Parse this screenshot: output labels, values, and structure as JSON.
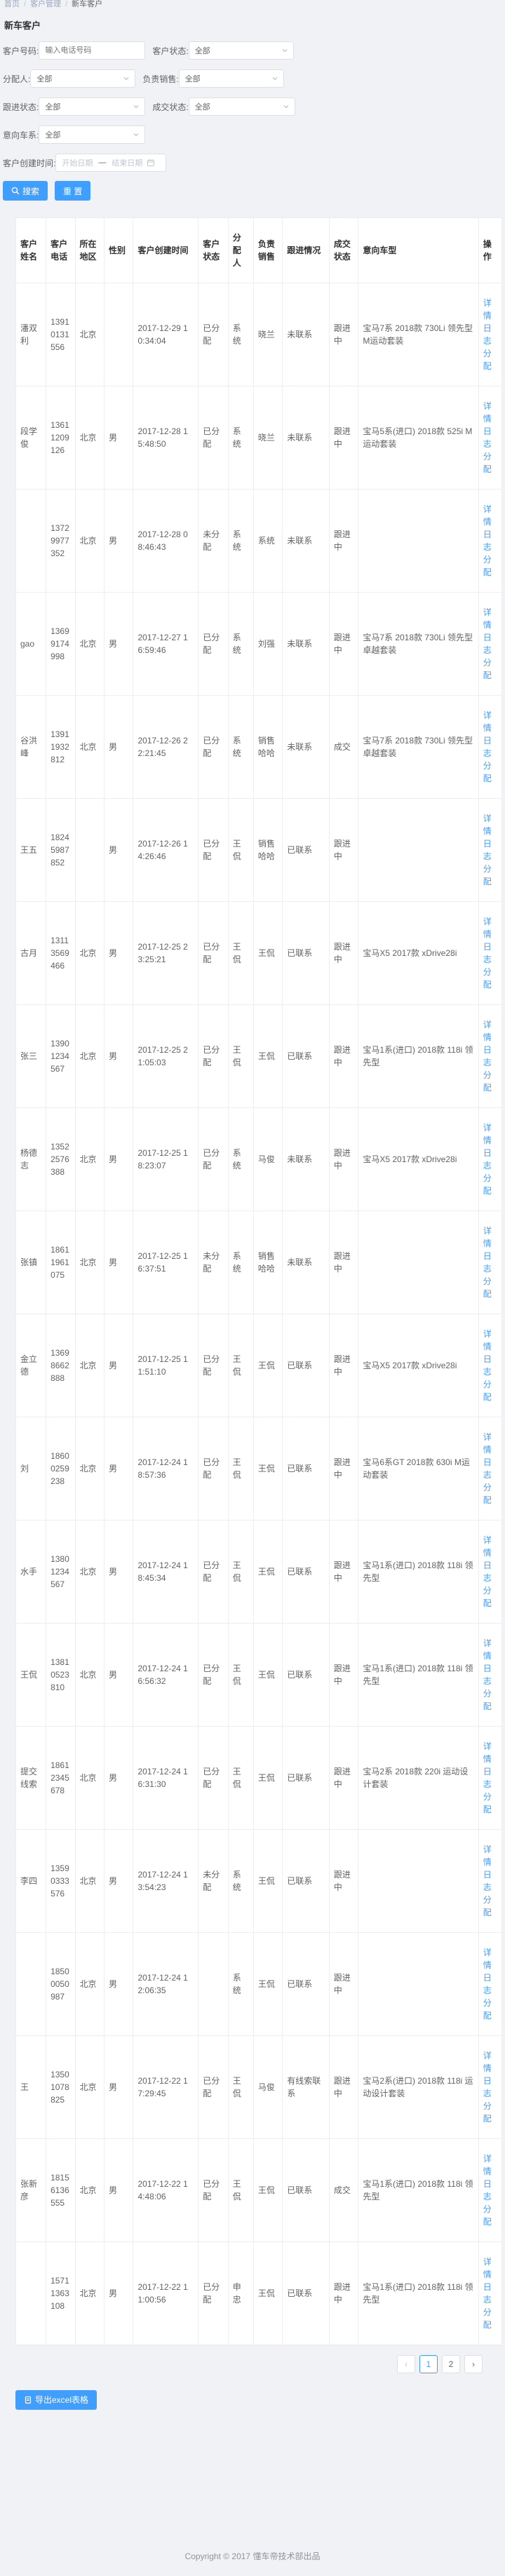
{
  "breadcrumb": [
    "首页",
    "客户管理",
    "新车客户"
  ],
  "page_title": "新车客户",
  "filters": {
    "phone_label": "客户号码:",
    "phone_placeholder": "输入电话号码",
    "status_label": "客户状态:",
    "status_value": "全部",
    "assignee_label": "分配人:",
    "assignee_value": "全部",
    "sales_label": "负责销售:",
    "sales_value": "全部",
    "follow_label": "跟进状态:",
    "follow_value": "全部",
    "deal_label": "成交状态:",
    "deal_value": "全部",
    "model_label": "意向车系:",
    "model_value": "全部",
    "created_label": "客户创建时间:",
    "start_placeholder": "开始日期",
    "range_dash": "—",
    "end_placeholder": "结束日期",
    "search_label": "搜索",
    "reset_label": "重 置"
  },
  "table": {
    "headers": [
      "客户姓名",
      "客户电话",
      "所在地区",
      "性别",
      "客户创建时间",
      "客户状态",
      "分配人",
      "负责销售",
      "跟进情况",
      "成交状态",
      "意向车型",
      "操作"
    ],
    "op_links": [
      "详情",
      "日志",
      "分配"
    ],
    "rows": [
      {
        "name": "潘双利",
        "phone": "13910131556",
        "region": "北京",
        "gender": "",
        "created": "2017-12-29 10:34:04",
        "status": "已分配",
        "assigner": "系统",
        "sales": "晓兰",
        "follow": "未联系",
        "deal": "跟进中",
        "model": "宝马7系 2018款 730Li 领先型 M运动套装"
      },
      {
        "name": "段学俊",
        "phone": "13611209126",
        "region": "北京",
        "gender": "男",
        "created": "2017-12-28 15:48:50",
        "status": "已分配",
        "assigner": "系统",
        "sales": "晓兰",
        "follow": "未联系",
        "deal": "跟进中",
        "model": "宝马5系(进口) 2018款 525i M运动套装"
      },
      {
        "name": "",
        "phone": "13729977352",
        "region": "北京",
        "gender": "男",
        "created": "2017-12-28 08:46:43",
        "status": "未分配",
        "assigner": "系统",
        "sales": "系统",
        "follow": "未联系",
        "deal": "跟进中",
        "model": ""
      },
      {
        "name": "gao",
        "phone": "13699174998",
        "region": "北京",
        "gender": "男",
        "created": "2017-12-27 16:59:46",
        "status": "已分配",
        "assigner": "系统",
        "sales": "刘强",
        "follow": "未联系",
        "deal": "跟进中",
        "model": "宝马7系 2018款 730Li 领先型 卓越套装"
      },
      {
        "name": "谷洪峰",
        "phone": "13911932812",
        "region": "北京",
        "gender": "男",
        "created": "2017-12-26 22:21:45",
        "status": "已分配",
        "assigner": "系统",
        "sales": "销售哈哈",
        "follow": "未联系",
        "deal": "成交",
        "model": "宝马7系 2018款 730Li 领先型 卓越套装"
      },
      {
        "name": "王五",
        "phone": "18245987852",
        "region": "",
        "gender": "男",
        "created": "2017-12-26 14:26:46",
        "status": "已分配",
        "assigner": "王侃",
        "sales": "销售哈哈",
        "follow": "已联系",
        "deal": "跟进中",
        "model": ""
      },
      {
        "name": "古月",
        "phone": "13113569466",
        "region": "北京",
        "gender": "男",
        "created": "2017-12-25 23:25:21",
        "status": "已分配",
        "assigner": "王侃",
        "sales": "王侃",
        "follow": "已联系",
        "deal": "跟进中",
        "model": "宝马X5 2017款 xDrive28i"
      },
      {
        "name": "张三",
        "phone": "13901234567",
        "region": "北京",
        "gender": "男",
        "created": "2017-12-25 21:05:03",
        "status": "已分配",
        "assigner": "王侃",
        "sales": "王侃",
        "follow": "已联系",
        "deal": "跟进中",
        "model": "宝马1系(进口) 2018款 118i 领先型"
      },
      {
        "name": "杨德志",
        "phone": "13522576388",
        "region": "北京",
        "gender": "男",
        "created": "2017-12-25 18:23:07",
        "status": "已分配",
        "assigner": "系统",
        "sales": "马俊",
        "follow": "未联系",
        "deal": "跟进中",
        "model": "宝马X5 2017款 xDrive28i"
      },
      {
        "name": "张镇",
        "phone": "18611961075",
        "region": "北京",
        "gender": "男",
        "created": "2017-12-25 16:37:51",
        "status": "未分配",
        "assigner": "系统",
        "sales": "销售哈哈",
        "follow": "未联系",
        "deal": "跟进中",
        "model": ""
      },
      {
        "name": "金立德",
        "phone": "13698662888",
        "region": "北京",
        "gender": "男",
        "created": "2017-12-25 11:51:10",
        "status": "已分配",
        "assigner": "王侃",
        "sales": "王侃",
        "follow": "已联系",
        "deal": "跟进中",
        "model": "宝马X5 2017款 xDrive28i"
      },
      {
        "name": "刘",
        "phone": "18600259238",
        "region": "北京",
        "gender": "男",
        "created": "2017-12-24 18:57:36",
        "status": "已分配",
        "assigner": "王侃",
        "sales": "王侃",
        "follow": "已联系",
        "deal": "跟进中",
        "model": "宝马6系GT 2018款 630i M运动套装"
      },
      {
        "name": "水手",
        "phone": "13801234567",
        "region": "北京",
        "gender": "男",
        "created": "2017-12-24 18:45:34",
        "status": "已分配",
        "assigner": "王侃",
        "sales": "王侃",
        "follow": "已联系",
        "deal": "跟进中",
        "model": "宝马1系(进口) 2018款 118i 领先型"
      },
      {
        "name": "王侃",
        "phone": "13810523810",
        "region": "北京",
        "gender": "男",
        "created": "2017-12-24 16:56:32",
        "status": "已分配",
        "assigner": "王侃",
        "sales": "王侃",
        "follow": "已联系",
        "deal": "跟进中",
        "model": "宝马1系(进口) 2018款 118i 领先型"
      },
      {
        "name": "提交线索",
        "phone": "18612345678",
        "region": "北京",
        "gender": "男",
        "created": "2017-12-24 16:31:30",
        "status": "已分配",
        "assigner": "王侃",
        "sales": "王侃",
        "follow": "已联系",
        "deal": "跟进中",
        "model": "宝马2系 2018款 220i 运动设计套装"
      },
      {
        "name": "李四",
        "phone": "13590333576",
        "region": "北京",
        "gender": "男",
        "created": "2017-12-24 13:54:23",
        "status": "未分配",
        "assigner": "系统",
        "sales": "王侃",
        "follow": "已联系",
        "deal": "跟进中",
        "model": ""
      },
      {
        "name": "",
        "phone": "18500050987",
        "region": "北京",
        "gender": "男",
        "created": "2017-12-24 12:06:35",
        "status": "",
        "assigner": "系统",
        "sales": "王侃",
        "follow": "已联系",
        "deal": "跟进中",
        "model": ""
      },
      {
        "name": "王",
        "phone": "13501078825",
        "region": "北京",
        "gender": "男",
        "created": "2017-12-22 17:29:45",
        "status": "已分配",
        "assigner": "王侃",
        "sales": "马俊",
        "follow": "有线索联系",
        "deal": "跟进中",
        "model": "宝马2系(进口) 2018款 118i 运动设计套装"
      },
      {
        "name": "张新彦",
        "phone": "18156136555",
        "region": "北京",
        "gender": "男",
        "created": "2017-12-22 14:48:06",
        "status": "已分配",
        "assigner": "王侃",
        "sales": "王侃",
        "follow": "已联系",
        "deal": "成交",
        "model": "宝马1系(进口) 2018款 118i 领先型"
      },
      {
        "name": "",
        "phone": "15711363108",
        "region": "北京",
        "gender": "男",
        "created": "2017-12-22 11:00:56",
        "status": "已分配",
        "assigner": "申忠",
        "sales": "王侃",
        "follow": "已联系",
        "deal": "跟进中",
        "model": "宝马1系(进口) 2018款 118i 领先型"
      }
    ]
  },
  "pagination": {
    "prev": "‹",
    "pages": [
      "1",
      "2"
    ],
    "active": "1",
    "next": "›"
  },
  "export_label": "导出excel表格",
  "footer": "Copyright © 2017 懂车帝技术部出品",
  "colors": {
    "accent": "#409eff",
    "background": "#f0f2f5"
  }
}
